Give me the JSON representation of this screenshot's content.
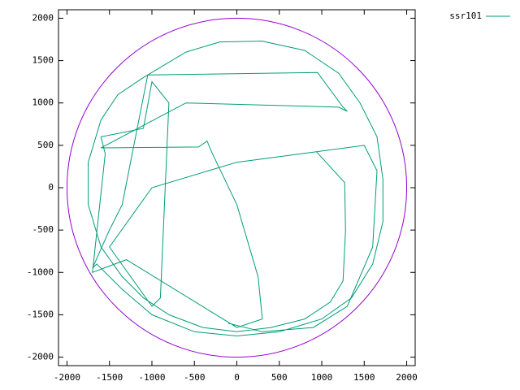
{
  "chart_data": {
    "type": "line",
    "xlim": [
      -2100,
      2100
    ],
    "ylim": [
      -2100,
      2100
    ],
    "xticks": [
      -2000,
      -1500,
      -1000,
      -500,
      0,
      500,
      1000,
      1500,
      2000
    ],
    "yticks": [
      -2000,
      -1500,
      -1000,
      -500,
      0,
      500,
      1000,
      1500,
      2000
    ],
    "legend": "top-right",
    "circle": {
      "center": [
        0,
        0
      ],
      "radius": 2000,
      "color": "#9400d3"
    },
    "series": [
      {
        "name": "ssr101",
        "color": "#009e73",
        "x": [
          940,
          1270,
          1280,
          1250,
          1100,
          800,
          400,
          0,
          -400,
          -800,
          -1100,
          -1350,
          -1600,
          -1750,
          -1750,
          -1600,
          -1400,
          -1100,
          -600,
          -200,
          300,
          800,
          1200,
          1450,
          1650,
          1720,
          1720,
          1600,
          1350,
          1000,
          500,
          0,
          -500,
          -1000,
          -1350,
          -1650,
          -1700,
          -1500,
          -1350,
          -1050,
          950,
          1250,
          1300,
          1200,
          -600,
          -1600,
          -450,
          -350,
          -300,
          0,
          250,
          300,
          0,
          -1300,
          -1700,
          -1550,
          -1600,
          -1100,
          -1000,
          -800,
          -900,
          -1000,
          -1500,
          -1000,
          0,
          1500,
          1650,
          1600,
          1300,
          900,
          300,
          -100
        ],
        "y": [
          420,
          60,
          -500,
          -1100,
          -1350,
          -1550,
          -1650,
          -1700,
          -1650,
          -1500,
          -1300,
          -1050,
          -700,
          -200,
          300,
          800,
          1100,
          1300,
          1600,
          1720,
          1730,
          1620,
          1350,
          1000,
          600,
          100,
          -400,
          -900,
          -1300,
          -1550,
          -1700,
          -1750,
          -1700,
          -1500,
          -1200,
          -900,
          -950,
          -500,
          -200,
          1330,
          1360,
          950,
          900,
          950,
          1000,
          470,
          480,
          550,
          430,
          -200,
          -1050,
          -1550,
          -1650,
          -850,
          -1000,
          400,
          600,
          700,
          1250,
          1000,
          -1300,
          -1400,
          -700,
          0,
          300,
          500,
          200,
          -700,
          -1400,
          -1650,
          -1700,
          -1600
        ]
      }
    ]
  }
}
